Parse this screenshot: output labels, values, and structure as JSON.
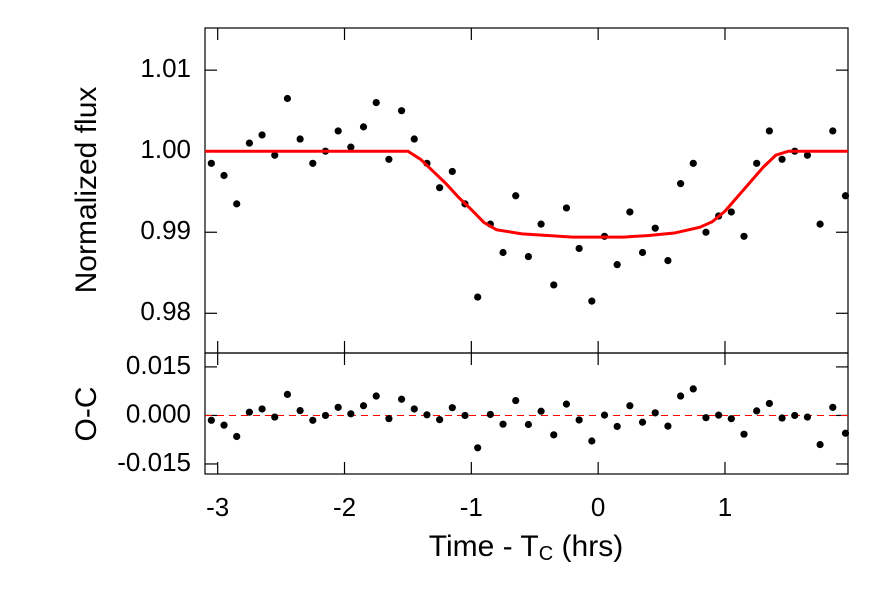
{
  "chart_data": [
    {
      "type": "scatter",
      "ylabel": "Normalized flux",
      "color": "#000000",
      "xlim": [
        -3.1,
        1.97
      ],
      "xticks": [
        -3,
        -2,
        -1,
        0,
        1
      ],
      "ylim": [
        0.9751,
        1.0152
      ],
      "yticks": [
        0.98,
        0.99,
        {
          "value": 1,
          "label": "1.00"
        },
        1.01
      ],
      "x": [
        -3.05,
        -2.95,
        -2.85,
        -2.75,
        -2.65,
        -2.55,
        -2.45,
        -2.35,
        -2.25,
        -2.15,
        -2.05,
        -1.95,
        -1.85,
        -1.75,
        -1.65,
        -1.55,
        -1.45,
        -1.35,
        -1.25,
        -1.15,
        -1.05,
        -0.95,
        -0.85,
        -0.75,
        -0.65,
        -0.55,
        -0.45,
        -0.35,
        -0.25,
        -0.15,
        -0.05,
        0.05,
        0.15,
        0.25,
        0.35,
        0.45,
        0.55,
        0.65,
        0.75,
        0.85,
        0.95,
        1.05,
        1.15,
        1.25,
        1.35,
        1.45,
        1.55,
        1.65,
        1.75,
        1.85,
        1.95
      ],
      "values": [
        0.9985,
        0.997,
        0.9935,
        1.001,
        1.002,
        0.9995,
        1.0065,
        1.0015,
        0.9985,
        1.0,
        1.0025,
        1.0005,
        1.003,
        1.006,
        0.999,
        1.005,
        1.0015,
        0.9985,
        0.9955,
        0.9975,
        0.9935,
        0.982,
        0.991,
        0.9875,
        0.9945,
        0.987,
        0.991,
        0.9835,
        0.993,
        0.988,
        0.9815,
        0.9895,
        0.986,
        0.9925,
        0.9875,
        0.9905,
        0.9865,
        0.996,
        0.9985,
        0.99,
        0.992,
        0.9925,
        0.9895,
        0.9985,
        1.0025,
        0.999,
        1.0,
        0.9995,
        0.991,
        1.0025,
        0.9945
      ],
      "model_color": "#ff0000",
      "model_x": [
        -3.1,
        -1.5,
        -1.4,
        -1.3,
        -1.2,
        -1.1,
        -1.0,
        -0.9,
        -0.8,
        -0.6,
        -0.4,
        -0.2,
        0,
        0.2,
        0.4,
        0.6,
        0.8,
        0.9,
        1.0,
        1.1,
        1.2,
        1.3,
        1.4,
        1.5,
        1.97
      ],
      "model_values": [
        1.0,
        1.0,
        0.999,
        0.9975,
        0.996,
        0.9943,
        0.9928,
        0.9912,
        0.9903,
        0.9898,
        0.9896,
        0.9894,
        0.9894,
        0.9894,
        0.9896,
        0.9899,
        0.9906,
        0.9913,
        0.9926,
        0.9944,
        0.9962,
        0.998,
        0.9995,
        1.0,
        1.0
      ]
    },
    {
      "type": "scatter",
      "ylabel": "O-C",
      "color": "#000000",
      "xlabel": "Time - T",
      "xlabel_sub": "C",
      "xlabel_suffix": " (hrs)",
      "xlim": [
        -3.1,
        1.97
      ],
      "xticks": [
        -3,
        -2,
        -1,
        0,
        1
      ],
      "ylim": [
        -0.0181,
        0.0193
      ],
      "yticks": [
        0.015,
        {
          "value": 0,
          "label": "0.000"
        },
        -0.015
      ],
      "reference_line": 0,
      "reference_color": "#ff0000",
      "x": [
        -3.05,
        -2.95,
        -2.85,
        -2.75,
        -2.65,
        -2.55,
        -2.45,
        -2.35,
        -2.25,
        -2.15,
        -2.05,
        -1.95,
        -1.85,
        -1.75,
        -1.65,
        -1.55,
        -1.45,
        -1.35,
        -1.25,
        -1.15,
        -1.05,
        -0.95,
        -0.85,
        -0.75,
        -0.65,
        -0.55,
        -0.45,
        -0.35,
        -0.25,
        -0.15,
        -0.05,
        0.05,
        0.15,
        0.25,
        0.35,
        0.45,
        0.55,
        0.65,
        0.75,
        0.85,
        0.95,
        1.05,
        1.15,
        1.25,
        1.35,
        1.45,
        1.55,
        1.65,
        1.75,
        1.85,
        1.95
      ],
      "values": [
        -0.0015,
        -0.003,
        -0.0065,
        0.001,
        0.002,
        -0.0005,
        0.0065,
        0.0015,
        -0.0015,
        0.0,
        0.0025,
        0.0005,
        0.003,
        0.006,
        -0.001,
        0.005,
        0.002,
        0.0002,
        -0.0013,
        0.0024,
        0.0,
        -0.01,
        0.0003,
        -0.0027,
        0.0046,
        -0.0028,
        0.0013,
        -0.006,
        0.0035,
        -0.0014,
        -0.0079,
        0.0001,
        -0.0034,
        0.003,
        -0.0021,
        0.0008,
        -0.0033,
        0.006,
        0.0082,
        -0.0007,
        0.0001,
        -0.001,
        -0.0058,
        0.0014,
        0.0037,
        -0.0008,
        0.0,
        -0.0005,
        -0.009,
        0.0025,
        -0.0055
      ]
    }
  ]
}
